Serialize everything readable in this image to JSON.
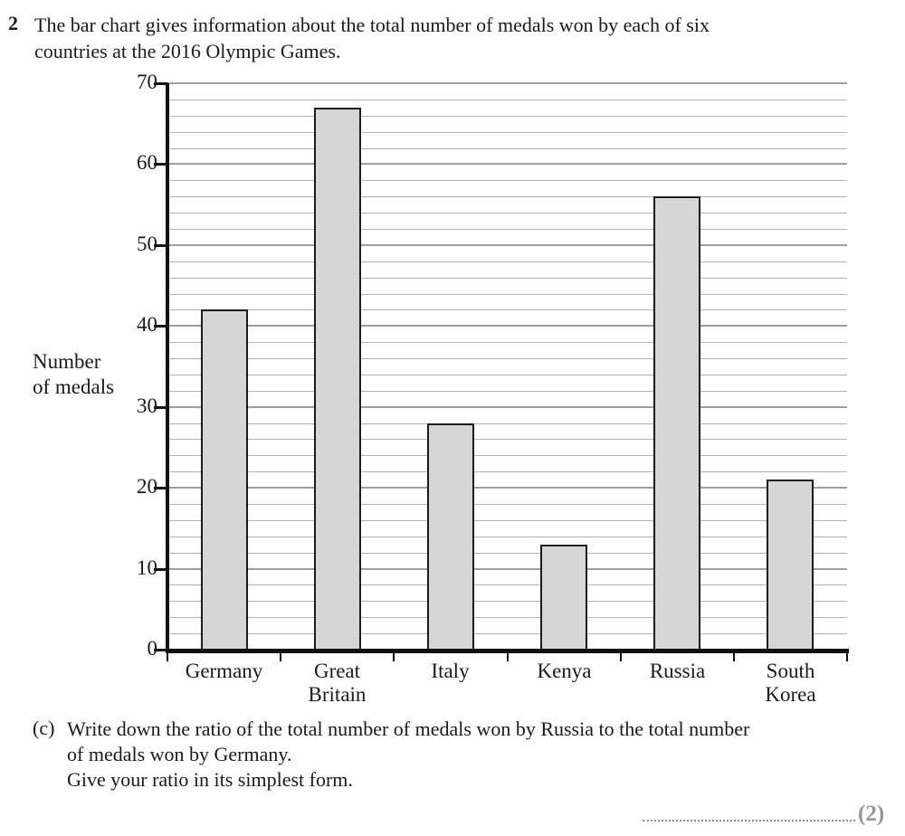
{
  "question": {
    "number": "2",
    "intro_line1": "The bar chart gives information about the total number of medals won by each of six",
    "intro_line2": "countries at the 2016 Olympic Games."
  },
  "chart_data": {
    "type": "bar",
    "title": "",
    "ylabel_line1": "Number",
    "ylabel_line2": "of medals",
    "categories": [
      "Germany",
      "Great\nBritain",
      "Italy",
      "Kenya",
      "Russia",
      "South\nKorea"
    ],
    "values": [
      42,
      67,
      28,
      13,
      56,
      21
    ],
    "ylim": [
      0,
      70
    ],
    "y_ticks": [
      "0",
      "10",
      "20",
      "30",
      "40",
      "50",
      "60",
      "70"
    ],
    "y_major_step": 10,
    "y_minor_step": 2,
    "grid": "horizontal-on",
    "legend": "none",
    "colors": {
      "bar_fill": "#d6d6d6",
      "bar_border": "#1c1c1c",
      "axis": "#111111",
      "major_grid": "#9d9d9d",
      "minor_grid": "#b3b3b3"
    }
  },
  "part_c": {
    "label": "(c)",
    "line1": "Write down the ratio of the total number of medals won by Russia to the total number",
    "line2": "of medals won by Germany.",
    "line3": "Give your ratio in its simplest form.",
    "marks": "(2)"
  }
}
